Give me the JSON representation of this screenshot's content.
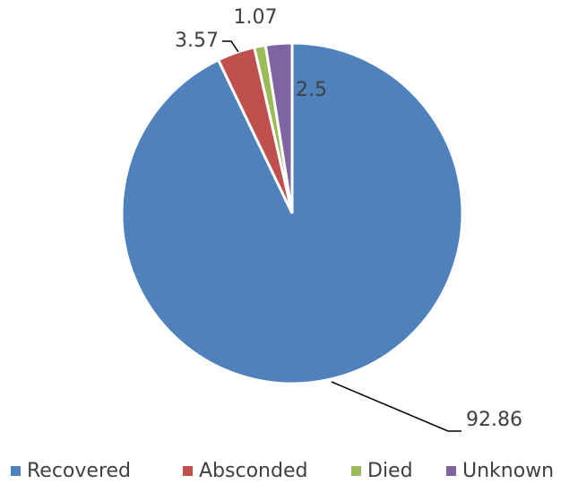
{
  "chart_data": {
    "type": "pie",
    "categories": [
      "Recovered",
      "Absconded",
      "Died",
      "Unknown"
    ],
    "values": [
      92.86,
      3.57,
      1.07,
      2.5
    ],
    "colors": [
      "#4f81bd",
      "#c0504d",
      "#9bbb59",
      "#8064a2"
    ],
    "legend": "bottom"
  }
}
